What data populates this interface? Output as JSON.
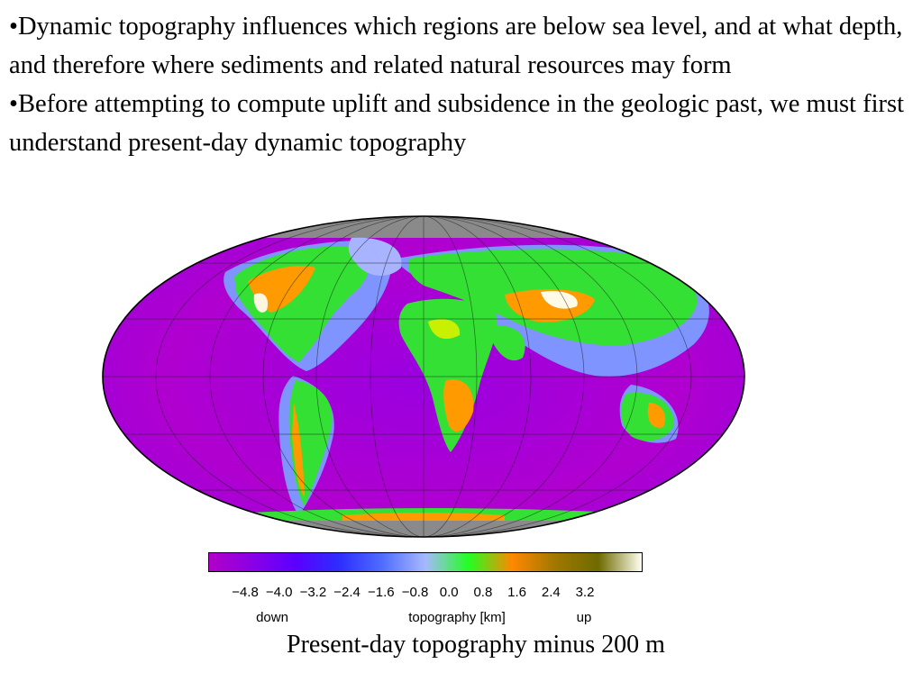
{
  "bullets": [
    "•Dynamic topography influences which regions are below sea level, and at what depth, and therefore where sediments and related natural resources may form",
    "•Before attempting to compute uplift and subsidence in the geologic past, we must first understand present-day dynamic topography"
  ],
  "colorbar": {
    "ticks": [
      "−4.8",
      "−4.0",
      "−3.2",
      "−2.4",
      "−1.6",
      "−0.8",
      "0.0",
      "0.8",
      "1.6",
      "2.4",
      "3.2"
    ],
    "left_label": "down",
    "center_label": "topography [km]",
    "right_label": "up",
    "colors": [
      "#b200c8",
      "#8a00e6",
      "#5a00ff",
      "#2d2dff",
      "#4f6cff",
      "#a7b8ff",
      "#22ff22",
      "#ff8800",
      "#a07800",
      "#6f6a00",
      "#fffff0"
    ]
  },
  "caption": "Present-day topography minus 200 m"
}
